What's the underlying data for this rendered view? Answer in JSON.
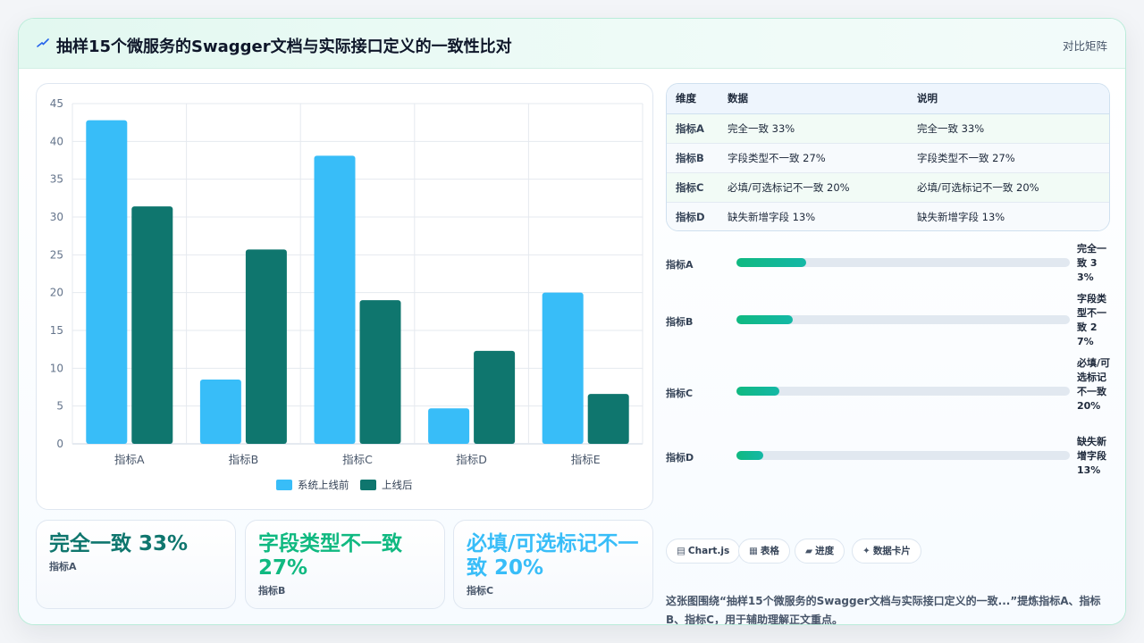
{
  "header": {
    "title": "抽样15个微服务的Swagger文档与实际接口定义的一致性比对",
    "badge": "对比矩阵"
  },
  "chart_data": {
    "type": "bar",
    "categories": [
      "指标A",
      "指标B",
      "指标C",
      "指标D",
      "指标E"
    ],
    "series": [
      {
        "name": "系统上线前",
        "values": [
          42.8,
          8.5,
          38.1,
          4.7,
          20.0
        ],
        "color": "#38bdf8"
      },
      {
        "name": "上线后",
        "values": [
          31.4,
          25.7,
          19.0,
          12.3,
          6.6
        ],
        "color": "#0f766e"
      }
    ],
    "ylim": [
      0,
      45
    ],
    "yticks": [
      0,
      5,
      10,
      15,
      20,
      25,
      30,
      35,
      40,
      45
    ],
    "grid": true,
    "legend": "bottom"
  },
  "stat_cards": [
    {
      "value": "完全一致 33%",
      "label": "指标A",
      "color": "#0f766e"
    },
    {
      "value": "字段类型不一致 27%",
      "label": "指标B",
      "color": "#10b981"
    },
    {
      "value": "必填/可选标记不一致 20%",
      "label": "指标C",
      "color": "#38bdf8"
    }
  ],
  "table": {
    "headers": [
      "维度",
      "数据",
      "说明"
    ],
    "rows": [
      [
        "指标A",
        "完全一致 33%",
        "完全一致 33%"
      ],
      [
        "指标B",
        "字段类型不一致 27%",
        "字段类型不一致 27%"
      ],
      [
        "指标C",
        "必填/可选标记不一致 20%",
        "必填/可选标记不一致 20%"
      ],
      [
        "指标D",
        "缺失新增字段 13%",
        "缺失新增字段 13%"
      ]
    ]
  },
  "progress": [
    {
      "label": "指标A",
      "value_text": "完全一致 33%",
      "fraction": 0.21
    },
    {
      "label": "指标B",
      "value_text": "字段类型不一致 27%",
      "fraction": 0.17
    },
    {
      "label": "指标C",
      "value_text": "必填/可选标记不一致 20%",
      "fraction": 0.13
    },
    {
      "label": "指标D",
      "value_text": "缺失新增字段 13%",
      "fraction": 0.08
    }
  ],
  "tags": [
    {
      "icon": "▤",
      "label": "Chart.js"
    },
    {
      "icon": "▦",
      "label": "表格"
    },
    {
      "icon": "▰",
      "label": "进度"
    },
    {
      "icon": "✦",
      "label": "数据卡片"
    }
  ],
  "summary": "这张图围绕“抽样15个微服务的Swagger文档与实际接口定义的一致...”提炼指标A、指标B、指标C，用于辅助理解正文重点。"
}
